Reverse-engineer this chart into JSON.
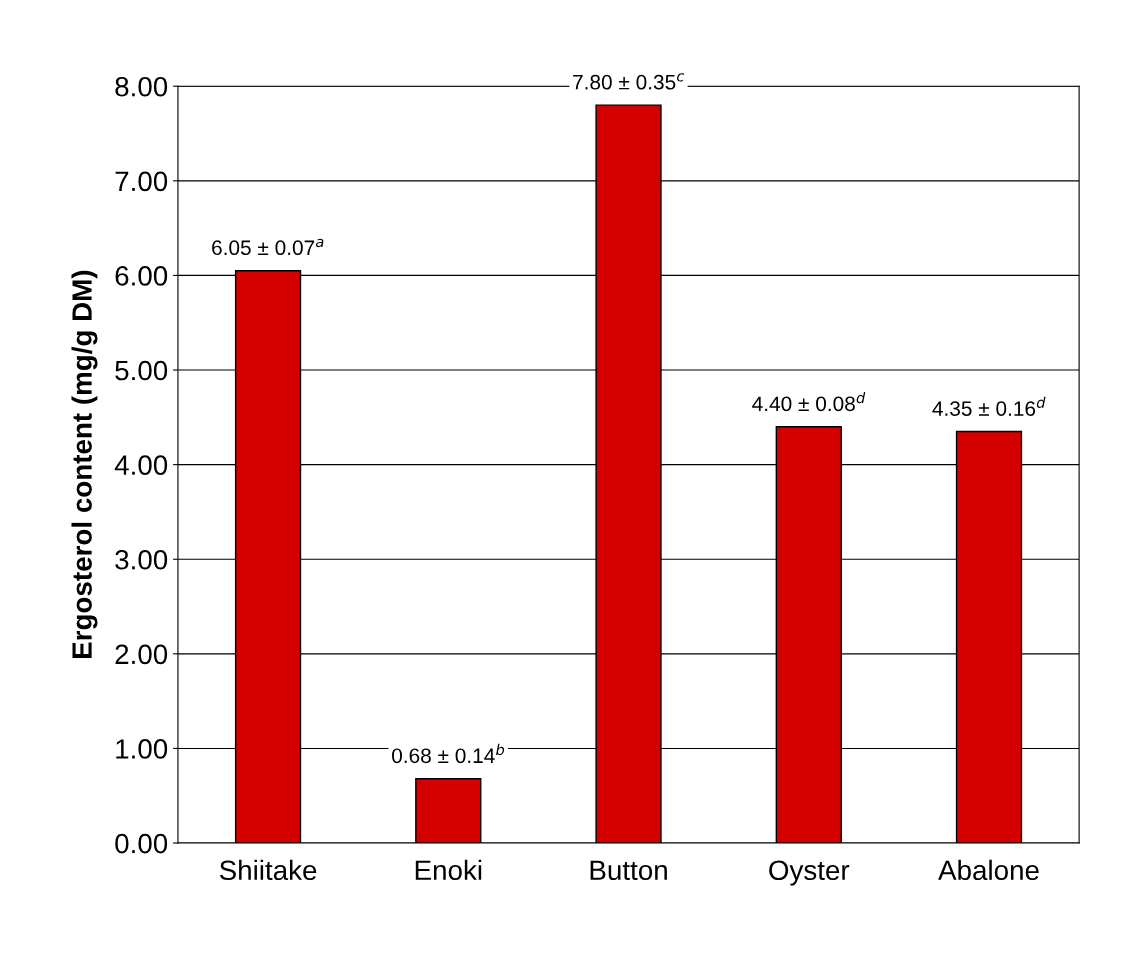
{
  "chart_data": {
    "type": "bar",
    "ylabel": "Ergosterol content (mg/g DM)",
    "categories": [
      "Shiitake",
      "Enoki",
      "Button",
      "Oyster",
      "Abalone"
    ],
    "values": [
      6.05,
      0.68,
      7.8,
      4.4,
      4.35
    ],
    "color": "#d40000",
    "value_labels": [
      "6.05 ± 0.07$^{a}$",
      "0.68 ± 0.14$^{b}$",
      "7.80 ± 0.35$^{c}$",
      "4.40 ± 0.08$^{d}$",
      "4.35 ± 0.16$^{d}$"
    ],
    "ylim": [
      0,
      8
    ],
    "yticks": [
      {
        "value": 0,
        "label": "0.00"
      },
      {
        "value": 1,
        "label": "1.00"
      },
      {
        "value": 2,
        "label": "2.00"
      },
      {
        "value": 3,
        "label": "3.00"
      },
      {
        "value": 4,
        "label": "4.00"
      },
      {
        "value": 5,
        "label": "5.00"
      },
      {
        "value": 6,
        "label": "6.00"
      },
      {
        "value": 7,
        "label": "7.00"
      },
      {
        "value": 8,
        "label": "8.00"
      }
    ],
    "grid": "y",
    "legend": false
  }
}
